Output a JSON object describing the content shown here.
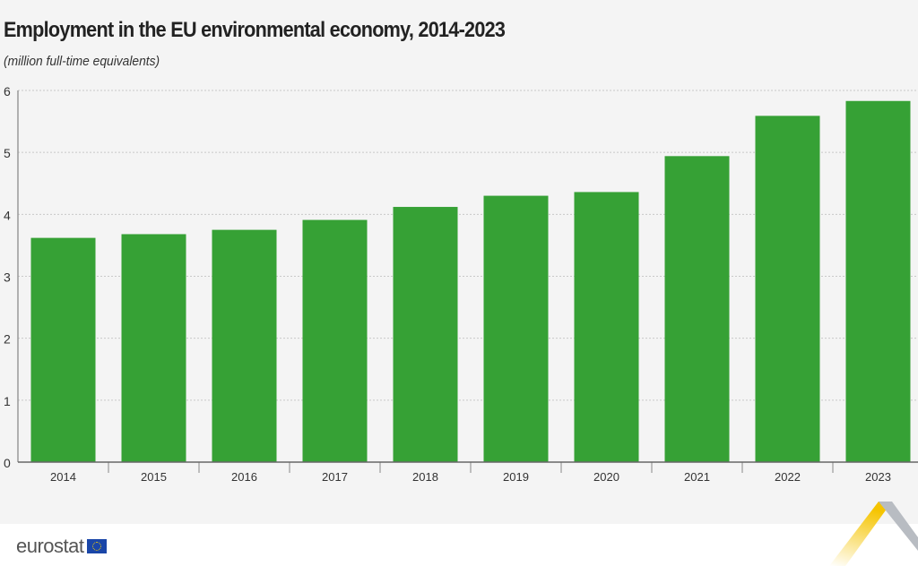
{
  "chart_data": {
    "type": "bar",
    "title": "Employment in the EU environmental economy, 2014-2023",
    "subtitle": "(million full-time equivalents)",
    "categories": [
      "2014",
      "2015",
      "2016",
      "2017",
      "2018",
      "2019",
      "2020",
      "2021",
      "2022",
      "2023"
    ],
    "values": [
      3.62,
      3.68,
      3.75,
      3.91,
      4.12,
      4.3,
      4.36,
      4.94,
      5.59,
      5.83
    ],
    "ylim": [
      0,
      6
    ],
    "yticks": [
      "0",
      "1",
      "2",
      "3",
      "4",
      "5",
      "6"
    ],
    "grid": true,
    "bar_color": "#36a135"
  },
  "footer": {
    "logo": "eurostat"
  }
}
